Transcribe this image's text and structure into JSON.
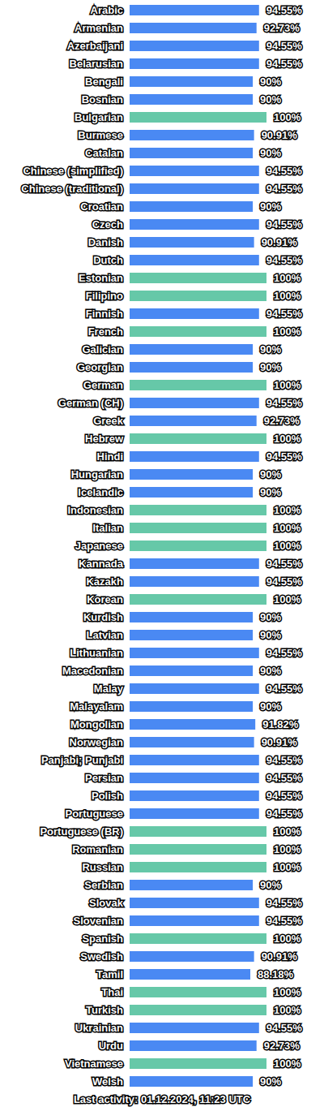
{
  "chart_data": {
    "type": "bar",
    "orientation": "horizontal",
    "data_labels": true,
    "tick_labels": "y",
    "grid": false,
    "annotation": "Last activity: 01.12.2024, 11:23 UTC",
    "xlim": [
      0,
      100
    ],
    "categories": [
      "Arabic",
      "Armenian",
      "Azerbaijani",
      "Belarusian",
      "Bengali",
      "Bosnian",
      "Bulgarian",
      "Burmese",
      "Catalan",
      "Chinese (simplified)",
      "Chinese (traditional)",
      "Croatian",
      "Czech",
      "Danish",
      "Dutch",
      "Estonian",
      "Filipino",
      "Finnish",
      "French",
      "Galician",
      "Georgian",
      "German",
      "German (CH)",
      "Greek",
      "Hebrew",
      "Hindi",
      "Hungarian",
      "Icelandic",
      "Indonesian",
      "Italian",
      "Japanese",
      "Kannada",
      "Kazakh",
      "Korean",
      "Kurdish",
      "Latvian",
      "Lithuanian",
      "Macedonian",
      "Malay",
      "Malayalam",
      "Mongolian",
      "Norwegian",
      "Panjabi; Punjabi",
      "Persian",
      "Polish",
      "Portuguese",
      "Portuguese (BR)",
      "Romanian",
      "Russian",
      "Serbian",
      "Slovak",
      "Slovenian",
      "Spanish",
      "Swedish",
      "Tamil",
      "Thai",
      "Turkish",
      "Ukrainian",
      "Urdu",
      "Vietnamese",
      "Welsh"
    ],
    "values": [
      94.55,
      92.73,
      94.55,
      94.55,
      90,
      90,
      100,
      90.91,
      90,
      94.55,
      94.55,
      90,
      94.55,
      90.91,
      94.55,
      100,
      100,
      94.55,
      100,
      90,
      90,
      100,
      94.55,
      92.73,
      100,
      94.55,
      90,
      90,
      100,
      100,
      100,
      94.55,
      94.55,
      100,
      90,
      90,
      94.55,
      90,
      94.55,
      90,
      91.82,
      90.91,
      94.55,
      94.55,
      94.55,
      94.55,
      100,
      100,
      100,
      90,
      94.55,
      94.55,
      100,
      90.91,
      88.18,
      100,
      100,
      94.55,
      92.73,
      100,
      90
    ],
    "value_labels": [
      "94.55%",
      "92.73%",
      "94.55%",
      "94.55%",
      "90%",
      "90%",
      "100%",
      "90.91%",
      "90%",
      "94.55%",
      "94.55%",
      "90%",
      "94.55%",
      "90.91%",
      "94.55%",
      "100%",
      "100%",
      "94.55%",
      "100%",
      "90%",
      "90%",
      "100%",
      "94.55%",
      "92.73%",
      "100%",
      "94.55%",
      "90%",
      "90%",
      "100%",
      "100%",
      "100%",
      "94.55%",
      "94.55%",
      "100%",
      "90%",
      "90%",
      "94.55%",
      "90%",
      "94.55%",
      "90%",
      "91.82%",
      "90.91%",
      "94.55%",
      "94.55%",
      "94.55%",
      "94.55%",
      "100%",
      "100%",
      "100%",
      "90%",
      "94.55%",
      "94.55%",
      "100%",
      "90.91%",
      "88.18%",
      "100%",
      "100%",
      "94.55%",
      "92.73%",
      "100%",
      "90%"
    ],
    "colors": [
      "#4a89f3",
      "#4a89f3",
      "#4a89f3",
      "#4a89f3",
      "#4a89f3",
      "#4a89f3",
      "#66c8a8",
      "#4a89f3",
      "#4a89f3",
      "#4a89f3",
      "#4a89f3",
      "#4a89f3",
      "#4a89f3",
      "#4a89f3",
      "#4a89f3",
      "#66c8a8",
      "#66c8a8",
      "#4a89f3",
      "#66c8a8",
      "#4a89f3",
      "#4a89f3",
      "#66c8a8",
      "#4a89f3",
      "#4a89f3",
      "#66c8a8",
      "#4a89f3",
      "#4a89f3",
      "#4a89f3",
      "#66c8a8",
      "#66c8a8",
      "#66c8a8",
      "#4a89f3",
      "#4a89f3",
      "#66c8a8",
      "#4a89f3",
      "#4a89f3",
      "#4a89f3",
      "#4a89f3",
      "#4a89f3",
      "#4a89f3",
      "#4a89f3",
      "#4a89f3",
      "#4a89f3",
      "#4a89f3",
      "#4a89f3",
      "#4a89f3",
      "#66c8a8",
      "#66c8a8",
      "#66c8a8",
      "#4a89f3",
      "#4a89f3",
      "#4a89f3",
      "#66c8a8",
      "#4a89f3",
      "#4a89f3",
      "#66c8a8",
      "#66c8a8",
      "#4a89f3",
      "#4a89f3",
      "#66c8a8",
      "#4a89f3"
    ]
  }
}
